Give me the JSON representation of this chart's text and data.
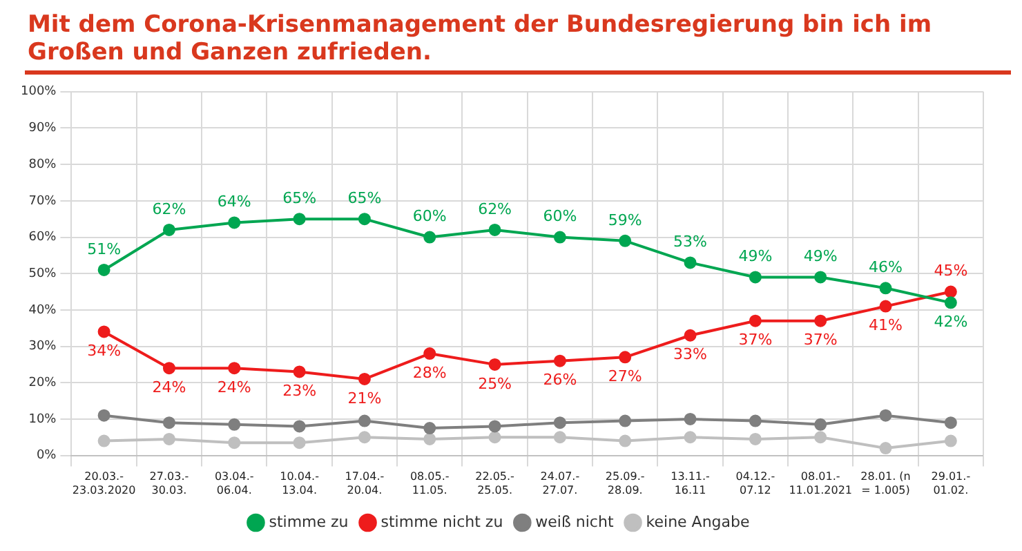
{
  "chart_data": {
    "type": "line",
    "title": "Mit dem Corona-Krisenmanagement der Bundesregierung bin ich im Großen und Ganzen zufrieden.",
    "categories": [
      "20.03.-23.03.2020",
      "27.03.-30.03.",
      "03.04.-06.04.",
      "10.04.-13.04.",
      "17.04.-20.04.",
      "08.05.-11.05.",
      "22.05.-25.05.",
      "24.07.-27.07.",
      "25.09.-28.09.",
      "13.11.-16.11",
      "04.12.-07.12",
      "08.01.-11.01.2021",
      "28.01. (n = 1.005)",
      "29.01.-01.02."
    ],
    "series": [
      {
        "name": "stimme zu",
        "color": "#00a651",
        "values": [
          51,
          62,
          64,
          65,
          65,
          60,
          62,
          60,
          59,
          53,
          49,
          49,
          46,
          42
        ],
        "value_labels": [
          "51%",
          "62%",
          "64%",
          "65%",
          "65%",
          "60%",
          "62%",
          "60%",
          "59%",
          "53%",
          "49%",
          "49%",
          "46%",
          "42%"
        ]
      },
      {
        "name": "stimme nicht zu",
        "color": "#ee1c1c",
        "values": [
          34,
          24,
          24,
          23,
          21,
          28,
          25,
          26,
          27,
          33,
          37,
          37,
          41,
          45
        ],
        "value_labels": [
          "34%",
          "24%",
          "24%",
          "23%",
          "21%",
          "28%",
          "25%",
          "26%",
          "27%",
          "33%",
          "37%",
          "37%",
          "41%",
          "45%"
        ]
      },
      {
        "name": "weiß nicht",
        "color": "#7f7f7f",
        "values": [
          11,
          9,
          8.5,
          8,
          9.5,
          7.5,
          8,
          9,
          9.5,
          10,
          9.5,
          8.5,
          11,
          9
        ]
      },
      {
        "name": "keine Angabe",
        "color": "#bfbfbf",
        "values": [
          4,
          4.5,
          3.5,
          3.5,
          5,
          4.5,
          5,
          5,
          4,
          5,
          4.5,
          5,
          2,
          4
        ]
      }
    ],
    "ylim": [
      0,
      100
    ],
    "yticks": [
      {
        "value": 0,
        "label": "0%"
      },
      {
        "value": 10,
        "label": "10%"
      },
      {
        "value": 20,
        "label": "20%"
      },
      {
        "value": 30,
        "label": "30%"
      },
      {
        "value": 40,
        "label": "40%"
      },
      {
        "value": 50,
        "label": "50%"
      },
      {
        "value": 60,
        "label": "60%"
      },
      {
        "value": 70,
        "label": "70%"
      },
      {
        "value": 80,
        "label": "80%"
      },
      {
        "value": 90,
        "label": "90%"
      },
      {
        "value": 100,
        "label": "100%"
      }
    ],
    "grid": true,
    "legend": "bottom",
    "marker": "circle",
    "line_style": "solid"
  }
}
